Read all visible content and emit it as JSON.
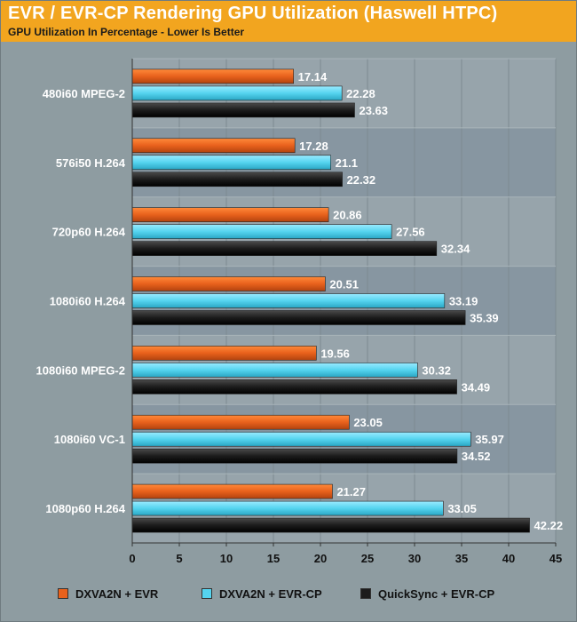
{
  "header": {
    "title": "EVR / EVR-CP Rendering GPU Utilization (Haswell HTPC)",
    "subtitle": "GPU Utilization In Percentage - Lower Is Better"
  },
  "colors": {
    "header_bg": "#f2a51f",
    "series": [
      "#e8611c",
      "#55d4ef",
      "#1c1c1c"
    ],
    "plot_band_dark": "#8796a1",
    "plot_band_light": "#97a4ab"
  },
  "legend": {
    "items": [
      "DXVA2N + EVR",
      "DXVA2N + EVR-CP",
      "QuickSync + EVR-CP"
    ]
  },
  "chart_data": {
    "type": "bar",
    "orientation": "horizontal",
    "title": "EVR / EVR-CP Rendering GPU Utilization (Haswell HTPC)",
    "subtitle": "GPU Utilization In Percentage - Lower Is Better",
    "categories": [
      "480i60 MPEG-2",
      "576i50 H.264",
      "720p60 H.264",
      "1080i60 H.264",
      "1080i60 MPEG-2",
      "1080i60 VC-1",
      "1080p60 H.264"
    ],
    "series": [
      {
        "name": "DXVA2N + EVR",
        "values": [
          17.14,
          17.28,
          20.86,
          20.51,
          19.56,
          23.05,
          21.27
        ]
      },
      {
        "name": "DXVA2N + EVR-CP",
        "values": [
          22.28,
          21.1,
          27.56,
          33.19,
          30.32,
          35.97,
          33.05
        ]
      },
      {
        "name": "QuickSync + EVR-CP",
        "values": [
          23.63,
          22.32,
          32.34,
          35.39,
          34.49,
          34.52,
          42.22
        ]
      }
    ],
    "xlim": [
      0,
      45
    ],
    "xticks": [
      0,
      5,
      10,
      15,
      20,
      25,
      30,
      35,
      40,
      45
    ],
    "legend_position": "bottom",
    "grid": true
  }
}
